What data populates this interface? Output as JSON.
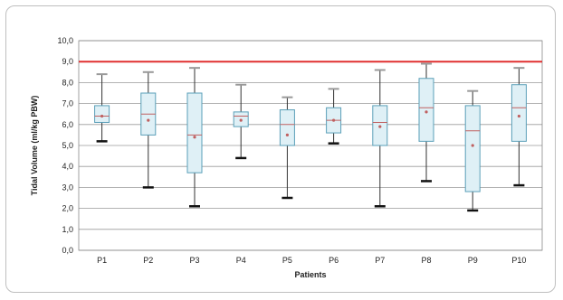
{
  "chart_data": {
    "type": "box",
    "title": "",
    "xlabel": "Patients",
    "ylabel": "Tidal Volume (ml/kg PBW)",
    "ylim": [
      0,
      10
    ],
    "ytick_step": 1,
    "ytick_labels": [
      "0,0",
      "1,0",
      "2,0",
      "3,0",
      "4,0",
      "5,0",
      "6,0",
      "7,0",
      "8,0",
      "9,0",
      "10,0"
    ],
    "grid": true,
    "reference_line": {
      "value": 9.0,
      "color": "#e03030"
    },
    "colors": {
      "box_fill": "#dff0f6",
      "box_stroke": "#5a9fb8",
      "whisker": "#333333",
      "cap": "#111111",
      "median": "#c06060",
      "mean": "#c06060",
      "grid": "#9a9a9a"
    },
    "categories": [
      "P1",
      "P2",
      "P3",
      "P4",
      "P5",
      "P6",
      "P7",
      "P8",
      "P9",
      "P10"
    ],
    "boxes": [
      {
        "name": "P1",
        "max": 8.4,
        "q3": 6.9,
        "median": 6.4,
        "q1": 6.1,
        "min": 5.2,
        "mean": 6.4
      },
      {
        "name": "P2",
        "max": 8.5,
        "q3": 7.5,
        "median": 6.5,
        "q1": 5.5,
        "min": 3.0,
        "mean": 6.2
      },
      {
        "name": "P3",
        "max": 8.7,
        "q3": 7.5,
        "median": 5.5,
        "q1": 3.7,
        "min": 2.1,
        "mean": 5.4
      },
      {
        "name": "P4",
        "max": 7.9,
        "q3": 6.6,
        "median": 6.4,
        "q1": 5.9,
        "min": 4.4,
        "mean": 6.2
      },
      {
        "name": "P5",
        "max": 7.3,
        "q3": 6.7,
        "median": 6.0,
        "q1": 5.0,
        "min": 2.5,
        "mean": 5.5
      },
      {
        "name": "P6",
        "max": 7.7,
        "q3": 6.8,
        "median": 6.2,
        "q1": 5.6,
        "min": 5.1,
        "mean": 6.2
      },
      {
        "name": "P7",
        "max": 8.6,
        "q3": 6.9,
        "median": 6.1,
        "q1": 5.0,
        "min": 2.1,
        "mean": 5.9
      },
      {
        "name": "P8",
        "max": 8.9,
        "q3": 8.2,
        "median": 6.8,
        "q1": 5.2,
        "min": 3.3,
        "mean": 6.6
      },
      {
        "name": "P9",
        "max": 7.6,
        "q3": 6.9,
        "median": 5.7,
        "q1": 2.8,
        "min": 1.9,
        "mean": 5.0
      },
      {
        "name": "P10",
        "max": 8.7,
        "q3": 7.9,
        "median": 6.8,
        "q1": 5.2,
        "min": 3.1,
        "mean": 6.4
      }
    ]
  }
}
